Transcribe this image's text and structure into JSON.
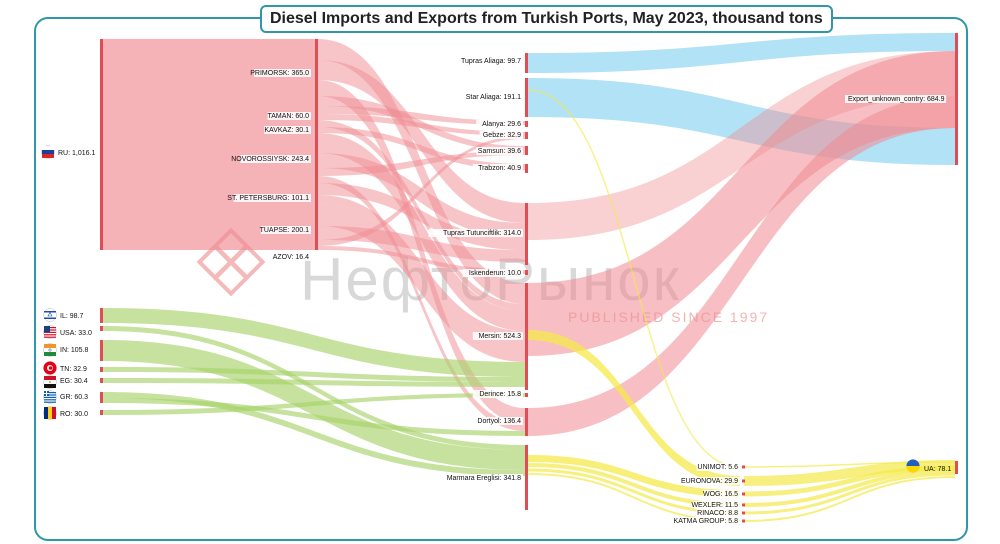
{
  "title": "Diesel Imports and Exports from Turkish Ports, May 2023, thousand tons",
  "watermark": {
    "brand": "НефтоРынок",
    "tagline": "PUBLISHED SINCE 1997"
  },
  "colors": {
    "ru": "#f08b92",
    "other_import": "#a8d26a",
    "ua": "#f4ea4a",
    "export_blue": "#7fcfef",
    "node": "#e04e55",
    "frame": "#2f97a8"
  },
  "countries": [
    {
      "id": "ru",
      "label": "RU: 1,016.1",
      "value": 1016.1,
      "flag": "russia-flag"
    },
    {
      "id": "il",
      "label": "IL: 98.7",
      "value": 98.7,
      "flag": "israel-flag"
    },
    {
      "id": "usa",
      "label": "USA: 33.0",
      "value": 33.0,
      "flag": "usa-flag"
    },
    {
      "id": "in",
      "label": "IN: 105.8",
      "value": 105.8,
      "flag": "india-flag"
    },
    {
      "id": "tn",
      "label": "TN: 32.9",
      "value": 32.9,
      "flag": "tunisia-flag"
    },
    {
      "id": "eg",
      "label": "EG: 30.4",
      "value": 30.4,
      "flag": "egypt-flag"
    },
    {
      "id": "gr",
      "label": "GR: 60.3",
      "value": 60.3,
      "flag": "greece-flag"
    },
    {
      "id": "ro",
      "label": "RO: 30.0",
      "value": 30.0,
      "flag": "romania-flag"
    }
  ],
  "ru_ports": [
    {
      "id": "primorsk",
      "label": "PRIMORSK: 365.0",
      "value": 365.0
    },
    {
      "id": "taman",
      "label": "TAMAN: 60.0",
      "value": 60.0
    },
    {
      "id": "kavkaz",
      "label": "KAVKAZ: 30.1",
      "value": 30.1
    },
    {
      "id": "novorossiysk",
      "label": "NOVOROSSIYSK: 243.4",
      "value": 243.4
    },
    {
      "id": "stpetersburg",
      "label": "ST. PETERSBURG: 101.1",
      "value": 101.1
    },
    {
      "id": "tuapse",
      "label": "TUAPSE: 200.1",
      "value": 200.1
    },
    {
      "id": "azov",
      "label": "AZOV: 16.4",
      "value": 16.4
    }
  ],
  "turkish_ports": [
    {
      "id": "tupras_aliaga",
      "label": "Tupras Aliaga: 99.7",
      "value": 99.7
    },
    {
      "id": "star_aliaga",
      "label": "Star Aliaga: 191.1",
      "value": 191.1
    },
    {
      "id": "alanya",
      "label": "Alanya: 29.6",
      "value": 29.6
    },
    {
      "id": "gebze",
      "label": "Gebze: 32.9",
      "value": 32.9
    },
    {
      "id": "samsun",
      "label": "Samsun: 39.6",
      "value": 39.6
    },
    {
      "id": "trabzon",
      "label": "Trabzon: 40.9",
      "value": 40.9
    },
    {
      "id": "tupras_tutunciftlik",
      "label": "Tupras Tutunciftlik: 314.0",
      "value": 314.0
    },
    {
      "id": "iskenderun",
      "label": "Iskenderun: 10.0",
      "value": 10.0
    },
    {
      "id": "mersin",
      "label": "Mersin: 524.3",
      "value": 524.3
    },
    {
      "id": "derince",
      "label": "Derince: 15.8",
      "value": 15.8
    },
    {
      "id": "dortyol",
      "label": "Dortyol: 136.4",
      "value": 136.4
    },
    {
      "id": "marmara_ereglisi",
      "label": "Marmara Ereglisi: 341.8",
      "value": 341.8
    }
  ],
  "destinations": [
    {
      "id": "export_unknown",
      "label": "Export_unknown_contry: 684.9",
      "value": 684.9
    },
    {
      "id": "ua",
      "label": "UA: 78.1",
      "value": 78.1,
      "flag": "ukraine-flag"
    }
  ],
  "ua_companies": [
    {
      "id": "unimot",
      "label": "UNIMOT: 5.6",
      "value": 5.6
    },
    {
      "id": "euronova",
      "label": "EURONOVA: 29.9",
      "value": 29.9
    },
    {
      "id": "wog",
      "label": "WOG: 16.5",
      "value": 16.5
    },
    {
      "id": "wexler",
      "label": "WEXLER: 11.5",
      "value": 11.5
    },
    {
      "id": "rinaco",
      "label": "RINACO: 8.8",
      "value": 8.8
    },
    {
      "id": "katma_group",
      "label": "KATMA GROUP: 5.8",
      "value": 5.8
    }
  ]
}
